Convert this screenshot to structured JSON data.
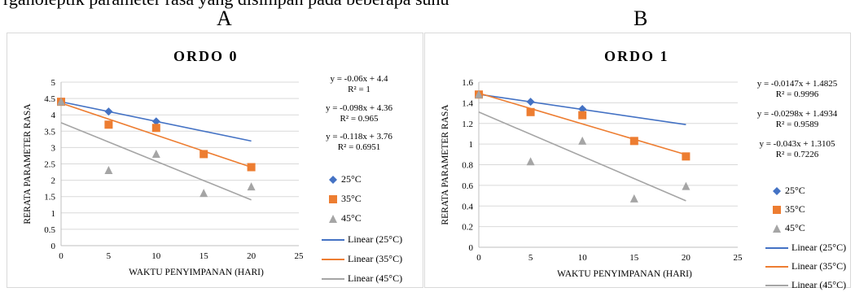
{
  "caption_fragment": "rganoleptik parameter rasa yang disimpan pada beberapa suhu",
  "colors": {
    "s25": "#4472c4",
    "s35": "#ed7d31",
    "s45": "#a5a5a5",
    "grid": "#d9d9d9",
    "axis": "#bfbfbf"
  },
  "chart_data": [
    {
      "panel_label": "A",
      "type": "scatter",
      "title": "ORDO 0",
      "xlabel": "WAKTU PENYIMPANAN  (HARI)",
      "ylabel": "RERATA PARAMETER RASA",
      "xlim": [
        0,
        25
      ],
      "ylim": [
        0,
        5
      ],
      "xticks": [
        "0",
        "5",
        "10",
        "15",
        "20",
        "25"
      ],
      "yticks": [
        "0",
        "0.5",
        "1",
        "1.5",
        "2",
        "2.5",
        "3",
        "3.5",
        "4",
        "4.5",
        "5"
      ],
      "grid": true,
      "legend_position": "right",
      "series": [
        {
          "name": "25°C",
          "x": [
            0,
            5,
            10
          ],
          "y": [
            4.4,
            4.1,
            3.8
          ],
          "marker": "diamond",
          "color": "#4472c4",
          "trend_name": "Linear (25°C)",
          "slope": -0.06,
          "intercept": 4.4,
          "trend_x": [
            0,
            20
          ],
          "equation": "y = -0.06x + 4.4",
          "r2": "R² = 1"
        },
        {
          "name": "35°C",
          "x": [
            0,
            5,
            10,
            15,
            20
          ],
          "y": [
            4.4,
            3.7,
            3.6,
            2.8,
            2.4
          ],
          "marker": "square",
          "color": "#ed7d31",
          "trend_name": "Linear (35°C)",
          "slope": -0.098,
          "intercept": 4.36,
          "trend_x": [
            0,
            20
          ],
          "equation": "y = -0.098x + 4.36",
          "r2": "R² = 0.965"
        },
        {
          "name": "45°C",
          "x": [
            0,
            5,
            10,
            15,
            20
          ],
          "y": [
            4.4,
            2.3,
            2.8,
            1.6,
            1.8
          ],
          "marker": "triangle",
          "color": "#a5a5a5",
          "trend_name": "Linear (45°C)",
          "slope": -0.118,
          "intercept": 3.76,
          "trend_x": [
            0,
            20
          ],
          "equation": "y = -0.118x + 3.76",
          "r2": "R² = 0.6951"
        }
      ]
    },
    {
      "panel_label": "B",
      "type": "scatter",
      "title": "ORDO 1",
      "xlabel": "WAKTU PENYIMPANAN  (HARI)",
      "ylabel": "RERATA PARAMETER RASA",
      "xlim": [
        0,
        25
      ],
      "ylim": [
        0,
        1.6
      ],
      "xticks": [
        "0",
        "5",
        "10",
        "15",
        "20",
        "25"
      ],
      "yticks": [
        "0",
        "0.2",
        "0.4",
        "0.6",
        "0.8",
        "1",
        "1.2",
        "1.4",
        "1.6"
      ],
      "grid": true,
      "legend_position": "right",
      "series": [
        {
          "name": "25°C",
          "x": [
            0,
            5,
            10
          ],
          "y": [
            1.48,
            1.41,
            1.34
          ],
          "marker": "diamond",
          "color": "#4472c4",
          "trend_name": "Linear (25°C)",
          "slope": -0.0147,
          "intercept": 1.4825,
          "trend_x": [
            0,
            20
          ],
          "equation": "y = -0.0147x + 1.4825",
          "r2": "R² = 0.9996"
        },
        {
          "name": "35°C",
          "x": [
            0,
            5,
            10,
            15,
            20
          ],
          "y": [
            1.48,
            1.31,
            1.28,
            1.03,
            0.88
          ],
          "marker": "square",
          "color": "#ed7d31",
          "trend_name": "Linear (35°C)",
          "slope": -0.0298,
          "intercept": 1.4934,
          "trend_x": [
            0,
            20
          ],
          "equation": "y = -0.0298x + 1.4934",
          "r2": "R² = 0.9589"
        },
        {
          "name": "45°C",
          "x": [
            0,
            5,
            10,
            15,
            20
          ],
          "y": [
            1.48,
            0.83,
            1.03,
            0.47,
            0.59
          ],
          "marker": "triangle",
          "color": "#a5a5a5",
          "trend_name": "Linear (45°C)",
          "slope": -0.043,
          "intercept": 1.3105,
          "trend_x": [
            0,
            20
          ],
          "equation": "y = -0.043x + 1.3105",
          "r2": "R² = 0.7226"
        }
      ]
    }
  ]
}
